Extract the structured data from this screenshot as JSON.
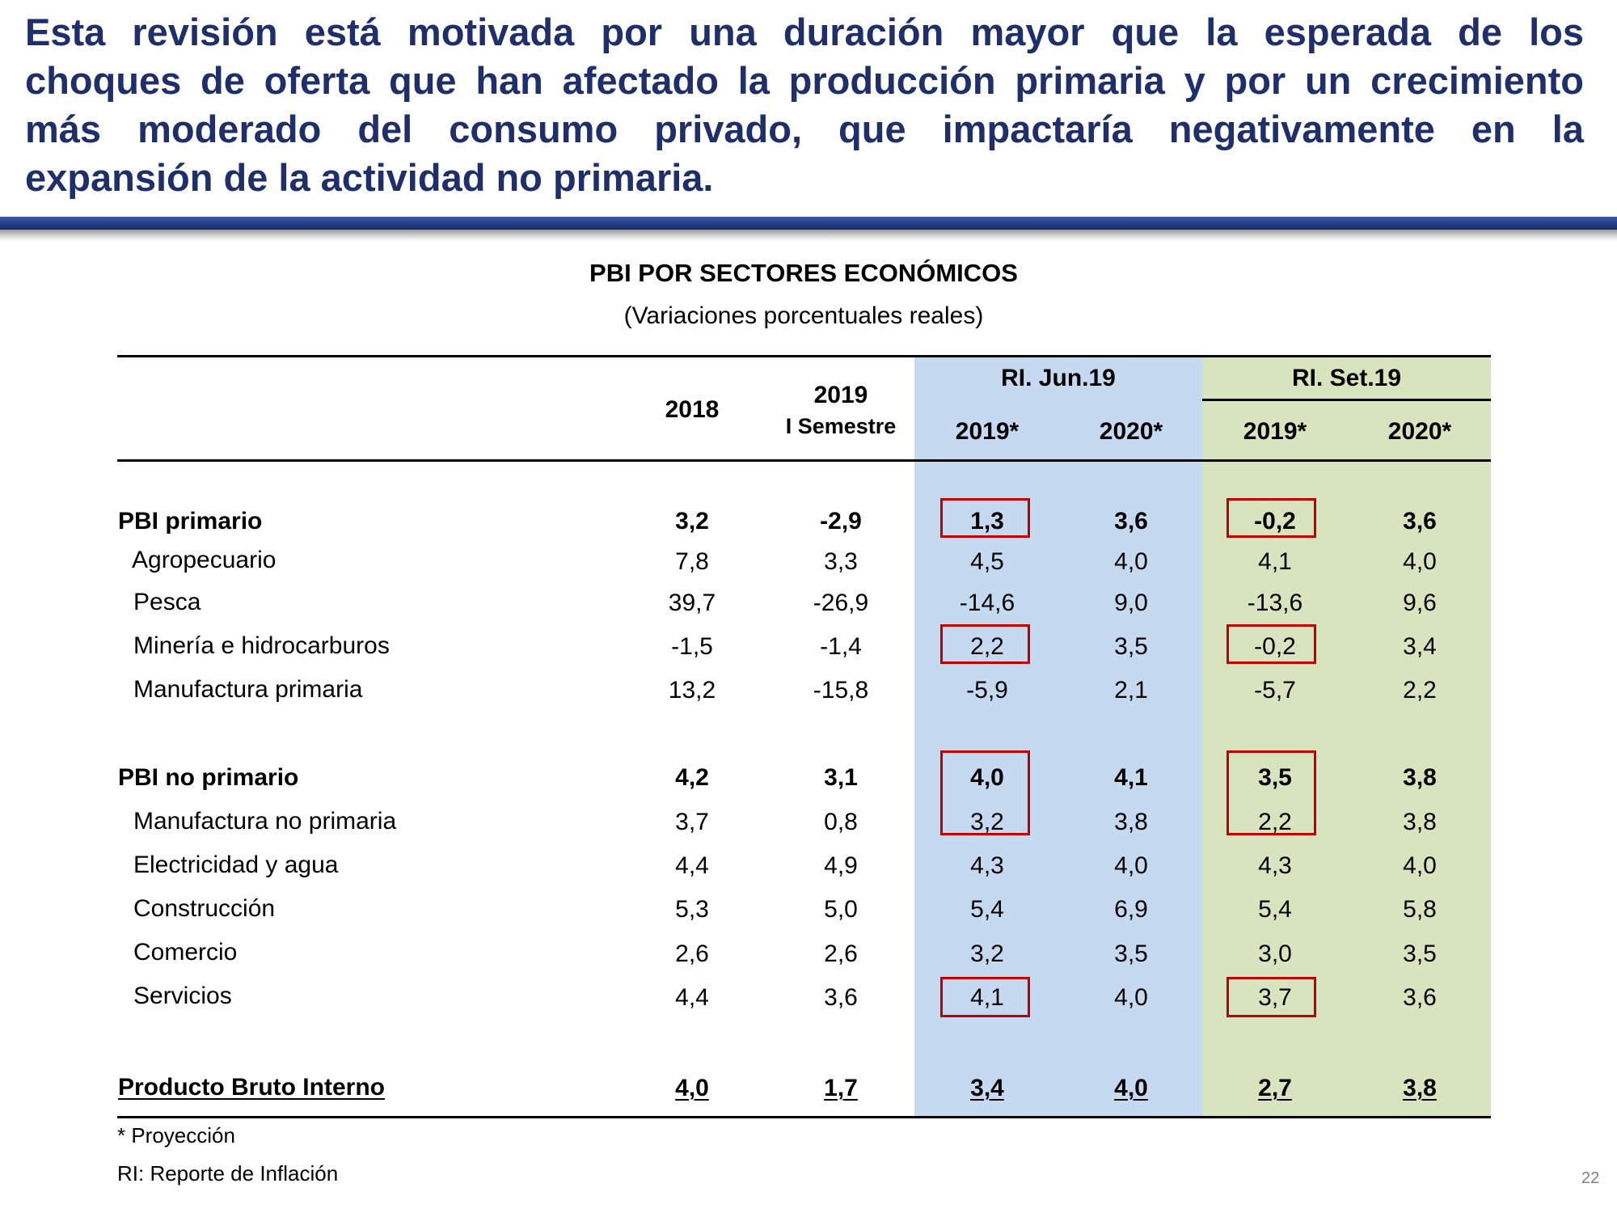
{
  "headline": {
    "lines": [
      "Esta revisión está motivada por una duración mayor que la esperada de los",
      "choques de oferta que han afectado la producción primaria y por un crecimiento",
      "más moderado del consumo privado, que impactaría negativamente en la",
      "expansión de la actividad no primaria."
    ]
  },
  "table": {
    "title": "PBI POR SECTORES ECONÓMICOS",
    "subtitle": "(Variaciones porcentuales reales)",
    "groups": {
      "ri_jun": "RI. Jun.19",
      "ri_set": "RI. Set.19"
    },
    "columns": {
      "c2018": "2018",
      "c2019": "2019",
      "c2019_sub": "I Semestre",
      "jun_2019": "2019*",
      "jun_2020": "2020*",
      "set_2019": "2019*",
      "set_2020": "2020*"
    },
    "band_colors": {
      "ri_jun": "#c5d9f1",
      "ri_set": "#d7e4bd"
    },
    "highlight_color": "#c00000",
    "rows": [
      {
        "label": "PBI primario",
        "values": [
          "3,2",
          "-2,9",
          "1,3",
          "3,6",
          "-0,2",
          "3,6"
        ],
        "style": "bold"
      },
      {
        "label": "Agropecuario",
        "values": [
          "7,8",
          "3,3",
          "4,5",
          "4,0",
          "4,1",
          "4,0"
        ],
        "style": "normal"
      },
      {
        "label": "Pesca",
        "values": [
          "39,7",
          "-26,9",
          "-14,6",
          "9,0",
          "-13,6",
          "9,6"
        ],
        "style": "normal"
      },
      {
        "label": "Minería e hidrocarburos",
        "values": [
          "-1,5",
          "-1,4",
          "2,2",
          "3,5",
          "-0,2",
          "3,4"
        ],
        "style": "normal"
      },
      {
        "label": "Manufactura primaria",
        "values": [
          "13,2",
          "-15,8",
          "-5,9",
          "2,1",
          "-5,7",
          "2,2"
        ],
        "style": "normal"
      },
      {
        "label": "PBI no primario",
        "values": [
          "4,2",
          "3,1",
          "4,0",
          "4,1",
          "3,5",
          "3,8"
        ],
        "style": "bold"
      },
      {
        "label": "Manufactura no primaria",
        "values": [
          "3,7",
          "0,8",
          "3,2",
          "3,8",
          "2,2",
          "3,8"
        ],
        "style": "normal"
      },
      {
        "label": "Electricidad y agua",
        "values": [
          "4,4",
          "4,9",
          "4,3",
          "4,0",
          "4,3",
          "4,0"
        ],
        "style": "normal"
      },
      {
        "label": "Construcción",
        "values": [
          "5,3",
          "5,0",
          "5,4",
          "6,9",
          "5,4",
          "5,8"
        ],
        "style": "normal"
      },
      {
        "label": "Comercio",
        "values": [
          "2,6",
          "2,6",
          "3,2",
          "3,5",
          "3,0",
          "3,5"
        ],
        "style": "normal"
      },
      {
        "label": "Servicios",
        "values": [
          "4,4",
          "3,6",
          "4,1",
          "4,0",
          "3,7",
          "3,6"
        ],
        "style": "normal"
      },
      {
        "label": "Producto Bruto Interno",
        "values": [
          "4,0",
          "1,7",
          "3,4",
          "4,0",
          "2,7",
          "3,8"
        ],
        "style": "bold-underline"
      }
    ]
  },
  "footnotes": {
    "projection": "* Proyección",
    "ri": "RI: Reporte de Inflación"
  },
  "page_number": "22"
}
